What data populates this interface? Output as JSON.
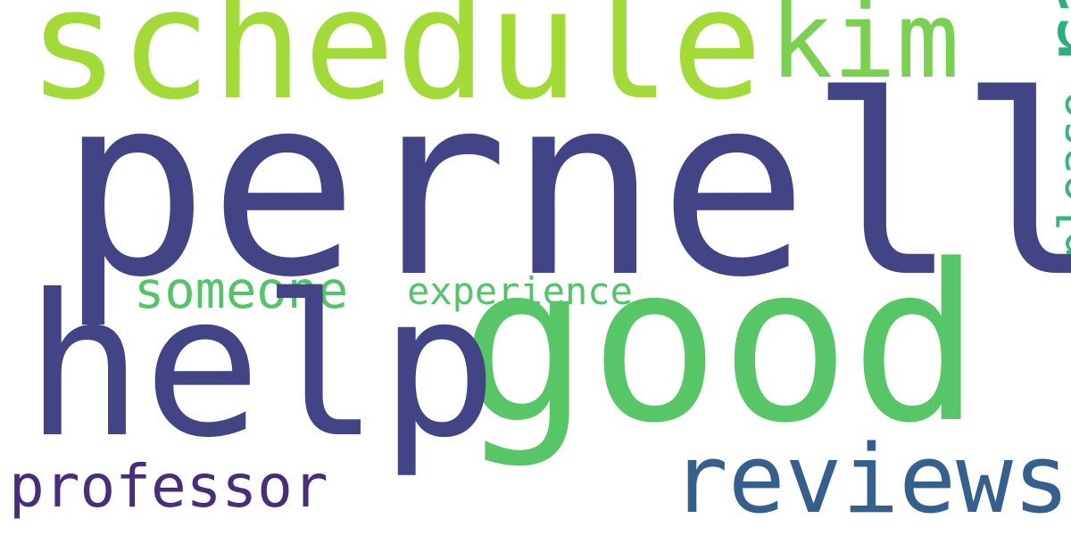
{
  "words": [
    {
      "key": "pernell",
      "text": "pernell",
      "color": "#424486"
    },
    {
      "key": "schedule",
      "text": "schedule",
      "color": "#a2da37"
    },
    {
      "key": "kim",
      "text": "kim",
      "color": "#7ad151"
    },
    {
      "key": "rate",
      "text": "rate",
      "color": "#2aaf7f"
    },
    {
      "key": "someone",
      "text": "someone",
      "color": "#52c569"
    },
    {
      "key": "experience",
      "text": "experience",
      "color": "#52c569"
    },
    {
      "key": "please",
      "text": "please",
      "color": "#35b779"
    },
    {
      "key": "good",
      "text": "good",
      "color": "#56c667"
    },
    {
      "key": "help",
      "text": "help",
      "color": "#424486"
    },
    {
      "key": "reviews",
      "text": "reviews",
      "color": "#355f8d"
    },
    {
      "key": "professor",
      "text": "professor",
      "color": "#472d7b"
    }
  ]
}
